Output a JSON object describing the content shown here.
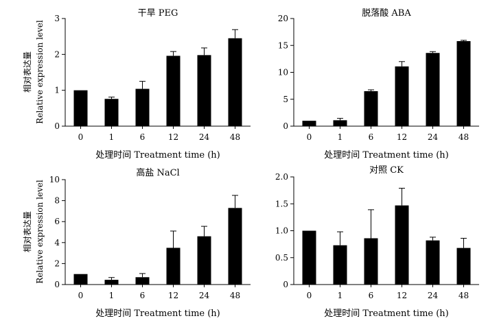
{
  "figure": {
    "shared_categories": [
      "0",
      "1",
      "6",
      "12",
      "24",
      "48"
    ],
    "x_axis_label": "处理时间 Treatment time (h)",
    "y_axis_label_cn": "相对表达量",
    "y_axis_label_en": "Relative expression level"
  },
  "chart_data": [
    {
      "type": "bar",
      "title": "干旱 PEG",
      "xlabel": "处理时间 Treatment time (h)",
      "ylabel": "相对表达量 Relative expression level",
      "categories": [
        "0",
        "1",
        "6",
        "12",
        "24",
        "48"
      ],
      "values": [
        1.0,
        0.76,
        1.04,
        1.96,
        1.98,
        2.45
      ],
      "errors": [
        0.0,
        0.05,
        0.21,
        0.12,
        0.2,
        0.24
      ],
      "ylim": [
        0,
        3
      ],
      "yticks": [
        "0",
        "1",
        "2",
        "3"
      ],
      "grid": false,
      "color": "#000000"
    },
    {
      "type": "bar",
      "title": "脱落酸 ABA",
      "xlabel": "处理时间 Treatment time (h)",
      "ylabel": "",
      "categories": [
        "0",
        "1",
        "6",
        "12",
        "24",
        "48"
      ],
      "values": [
        1.0,
        1.1,
        6.5,
        11.1,
        13.6,
        15.8
      ],
      "errors": [
        0.0,
        0.35,
        0.25,
        0.9,
        0.25,
        0.15
      ],
      "ylim": [
        0,
        20
      ],
      "yticks": [
        "0",
        "5",
        "10",
        "15",
        "20"
      ],
      "grid": false,
      "color": "#000000"
    },
    {
      "type": "bar",
      "title": "高盐 NaCl",
      "xlabel": "处理时间 Treatment time (h)",
      "ylabel": "相对表达量 Relative expression level",
      "categories": [
        "0",
        "1",
        "6",
        "12",
        "24",
        "48"
      ],
      "values": [
        1.0,
        0.45,
        0.7,
        3.5,
        4.6,
        7.3
      ],
      "errors": [
        0.0,
        0.22,
        0.35,
        1.6,
        0.95,
        1.2
      ],
      "ylim": [
        0,
        10
      ],
      "yticks": [
        "0",
        "2",
        "4",
        "6",
        "8",
        "10"
      ],
      "grid": false,
      "color": "#000000"
    },
    {
      "type": "bar",
      "title": "对照 CK",
      "xlabel": "处理时间 Treatment time (h)",
      "ylabel": "",
      "categories": [
        "0",
        "1",
        "6",
        "12",
        "24",
        "48"
      ],
      "values": [
        1.0,
        0.73,
        0.86,
        1.47,
        0.82,
        0.68
      ],
      "errors": [
        0.0,
        0.25,
        0.53,
        0.32,
        0.06,
        0.18
      ],
      "ylim": [
        0,
        2.0
      ],
      "yticks": [
        "0",
        "0.5",
        "1.0",
        "1.5",
        "2.0"
      ],
      "grid": false,
      "color": "#000000"
    }
  ]
}
